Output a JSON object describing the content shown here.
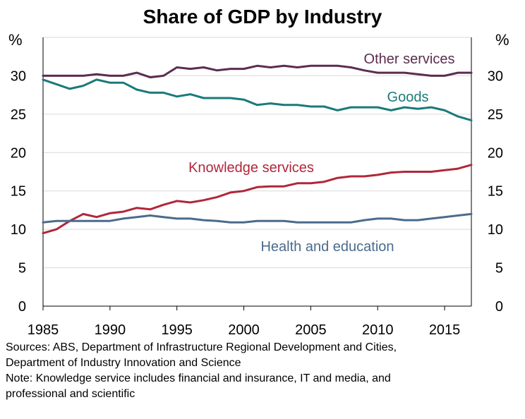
{
  "chart_data": {
    "type": "line",
    "title": "Share of GDP by Industry",
    "ylabel_left": "%",
    "ylabel_right": "%",
    "ylim": [
      0,
      35
    ],
    "yticks": [
      0,
      5,
      10,
      15,
      20,
      25,
      30
    ],
    "xlim": [
      1985,
      2017
    ],
    "xticks": [
      1985,
      1990,
      1995,
      2000,
      2005,
      2010,
      2015
    ],
    "grid": true,
    "x": [
      1985,
      1986,
      1987,
      1988,
      1989,
      1990,
      1991,
      1992,
      1993,
      1994,
      1995,
      1996,
      1997,
      1998,
      1999,
      2000,
      2001,
      2002,
      2003,
      2004,
      2005,
      2006,
      2007,
      2008,
      2009,
      2010,
      2011,
      2012,
      2013,
      2014,
      2015,
      2016,
      2017
    ],
    "series": [
      {
        "name": "Other services",
        "color": "#5b2d4e",
        "values": [
          30.0,
          30.0,
          30.0,
          30.0,
          30.2,
          30.0,
          30.0,
          30.4,
          29.8,
          30.0,
          31.1,
          30.9,
          31.1,
          30.7,
          30.9,
          30.9,
          31.3,
          31.1,
          31.3,
          31.1,
          31.3,
          31.3,
          31.3,
          31.1,
          30.7,
          30.4,
          30.4,
          30.4,
          30.2,
          30.0,
          30.0,
          30.4,
          30.4
        ]
      },
      {
        "name": "Goods",
        "color": "#1a7a7a",
        "values": [
          29.5,
          28.9,
          28.3,
          28.7,
          29.5,
          29.1,
          29.1,
          28.2,
          27.8,
          27.8,
          27.3,
          27.6,
          27.1,
          27.1,
          27.1,
          26.9,
          26.2,
          26.4,
          26.2,
          26.2,
          26.0,
          26.0,
          25.5,
          25.9,
          25.9,
          25.9,
          25.5,
          25.9,
          25.7,
          25.9,
          25.5,
          24.7,
          24.2
        ]
      },
      {
        "name": "Knowledge services",
        "color": "#b0273a",
        "values": [
          9.5,
          10.0,
          11.1,
          12.0,
          11.6,
          12.1,
          12.3,
          12.8,
          12.6,
          13.2,
          13.7,
          13.5,
          13.8,
          14.2,
          14.8,
          15.0,
          15.5,
          15.6,
          15.6,
          16.0,
          16.0,
          16.2,
          16.7,
          16.9,
          16.9,
          17.1,
          17.4,
          17.5,
          17.5,
          17.5,
          17.7,
          17.9,
          18.4
        ]
      },
      {
        "name": "Health and education",
        "color": "#4a6b8c",
        "values": [
          10.9,
          11.1,
          11.1,
          11.1,
          11.1,
          11.1,
          11.4,
          11.6,
          11.8,
          11.6,
          11.4,
          11.4,
          11.2,
          11.1,
          10.9,
          10.9,
          11.1,
          11.1,
          11.1,
          10.9,
          10.9,
          10.9,
          10.9,
          10.9,
          11.2,
          11.4,
          11.4,
          11.2,
          11.2,
          11.4,
          11.6,
          11.8,
          12.0
        ]
      }
    ]
  },
  "footnotes": {
    "line1": "Sources: ABS, Department of Infrastructure Regional Development and Cities,",
    "line2": "Department of Industry Innovation and Science",
    "line3": "Note: Knowledge service includes financial and insurance, IT and media, and",
    "line4": "professional and scientific"
  }
}
